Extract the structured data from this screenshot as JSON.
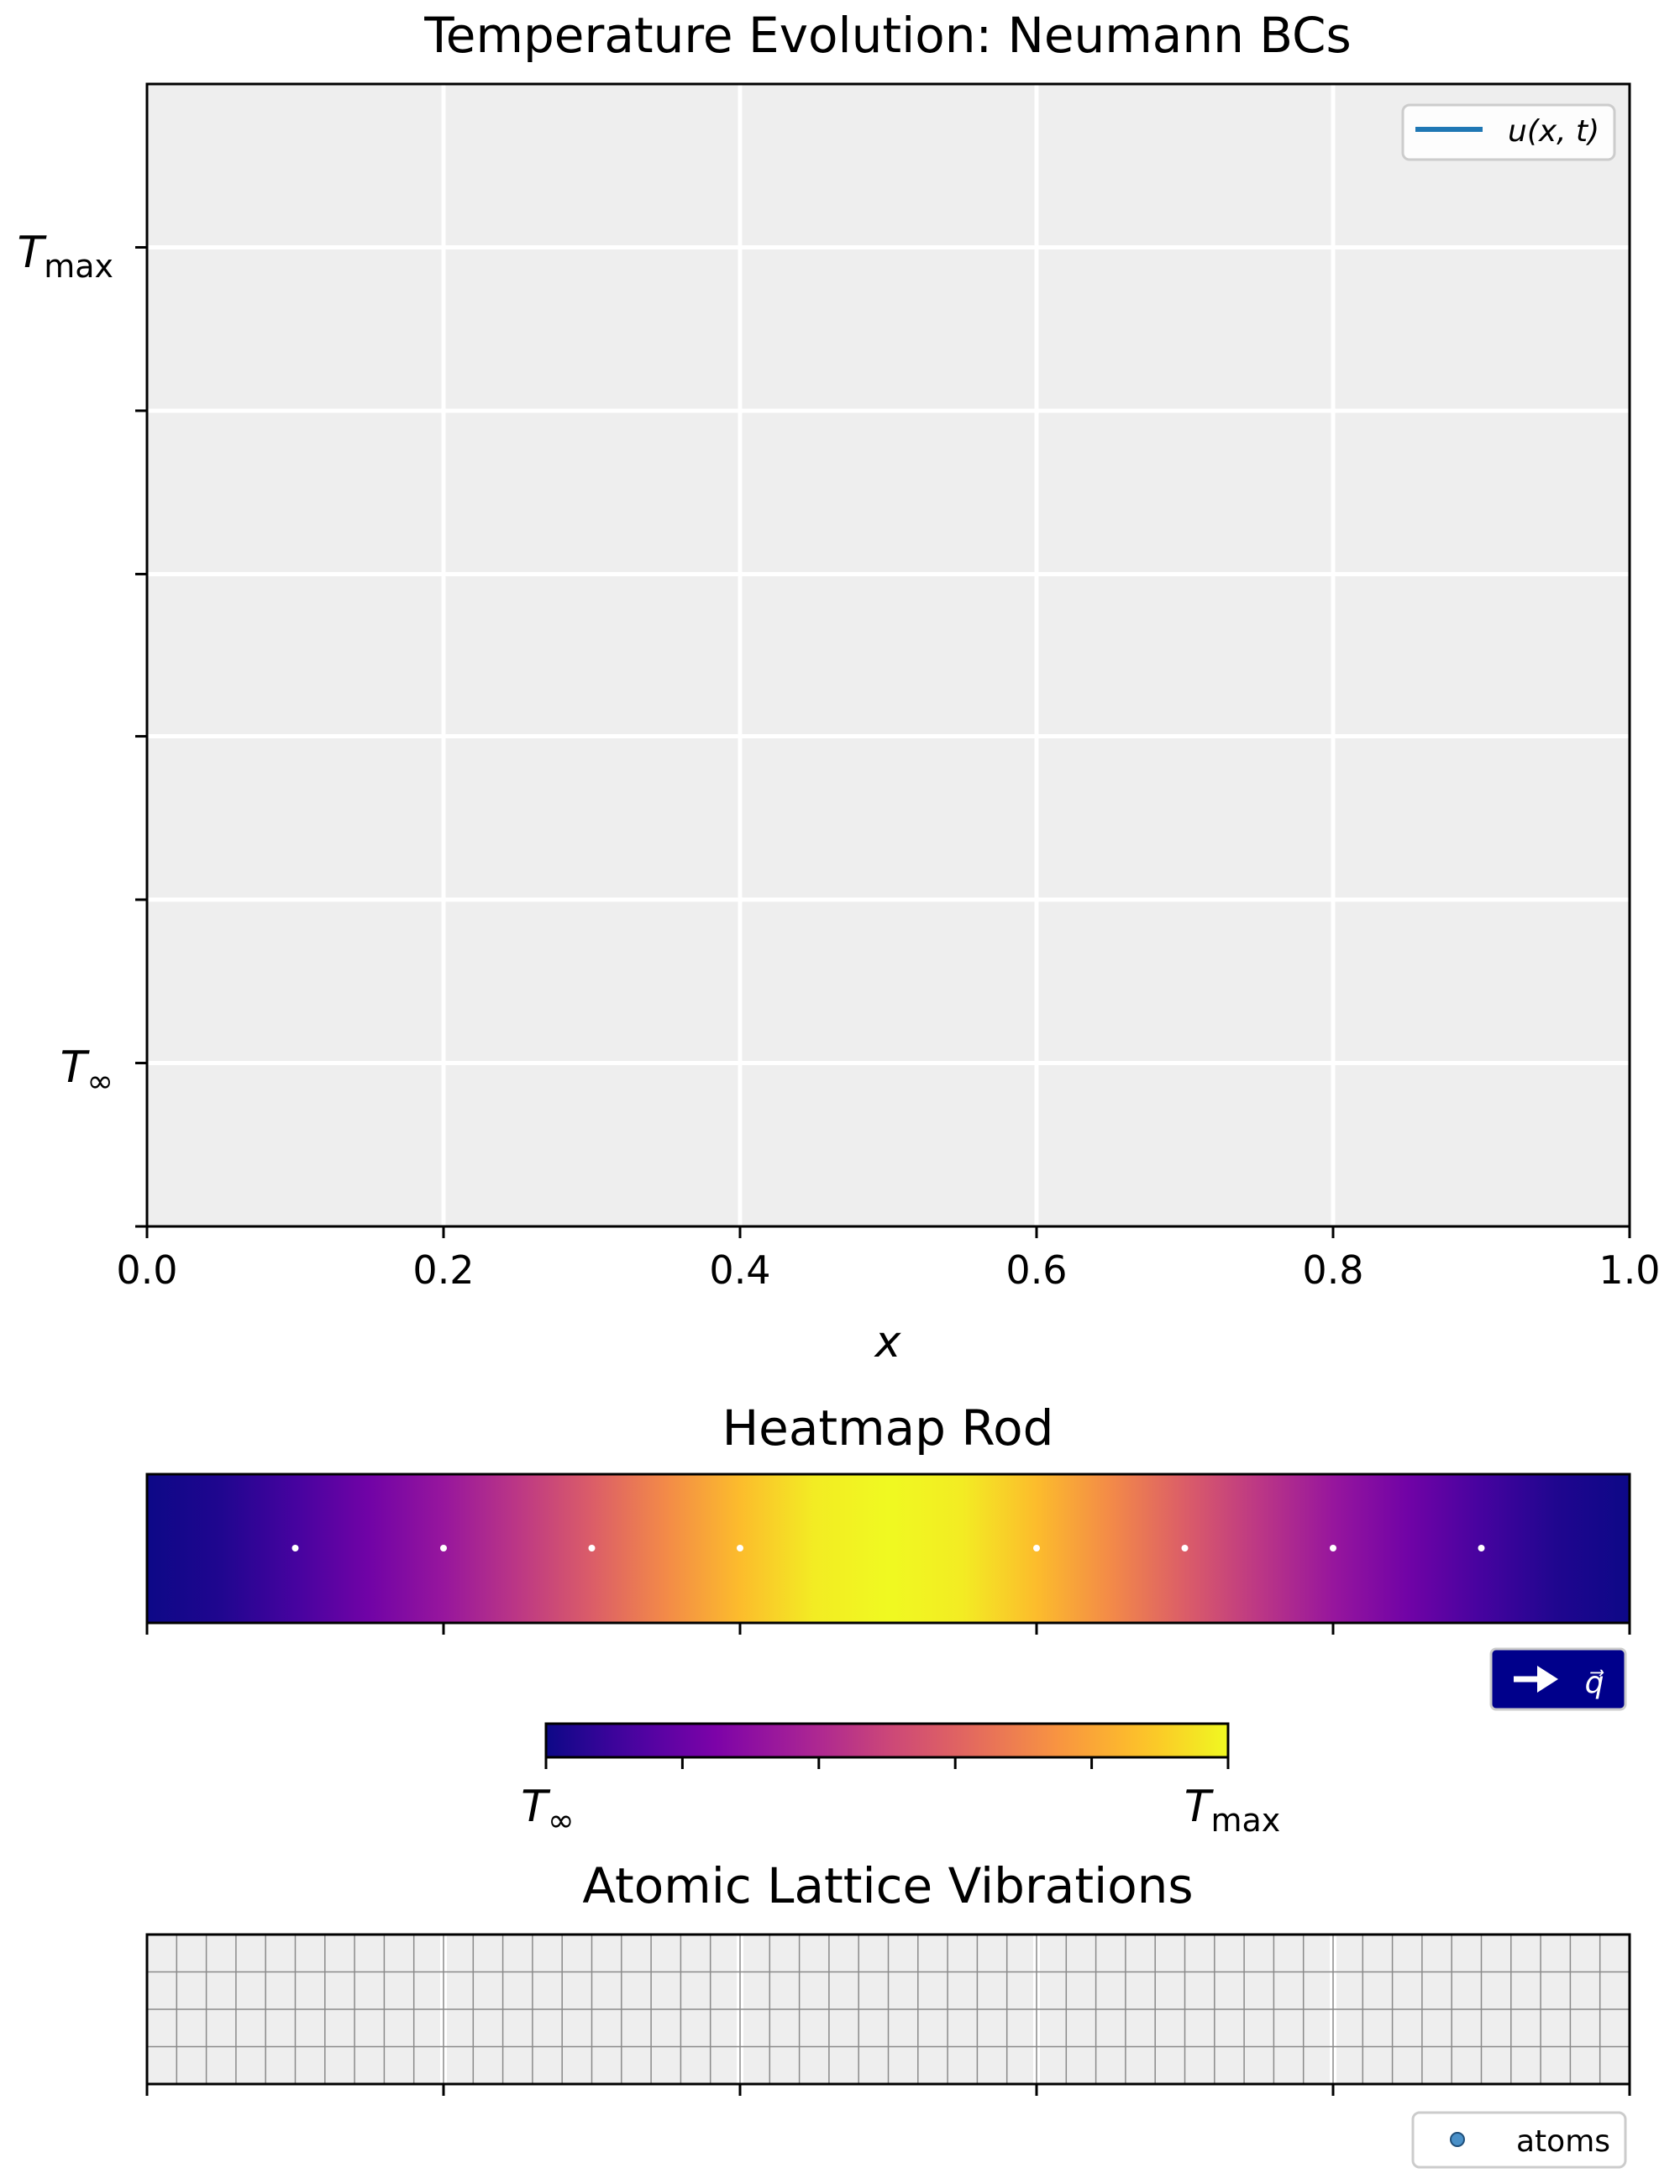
{
  "chart_data": [
    {
      "type": "line",
      "title": "Temperature Evolution: Neumann BCs",
      "xlabel": "x",
      "ylabel": "",
      "xlim": [
        0.0,
        1.0
      ],
      "xticks": [
        "0.0",
        "0.2",
        "0.4",
        "0.6",
        "0.8",
        "1.0"
      ],
      "yticks": [
        {
          "value": 0.857,
          "label": "T_max"
        },
        {
          "value": 0.714,
          "label": ""
        },
        {
          "value": 0.571,
          "label": ""
        },
        {
          "value": 0.429,
          "label": ""
        },
        {
          "value": 0.286,
          "label": ""
        },
        {
          "value": 0.143,
          "label": "T_∞"
        },
        {
          "value": 0.0,
          "label": ""
        }
      ],
      "ylim": [
        0,
        1
      ],
      "grid": true,
      "legend": "top-right",
      "series": [
        {
          "name": "u(x, t)",
          "values": [],
          "color": "#1f77b4"
        }
      ],
      "background": "#eeeeee"
    },
    {
      "type": "heatmap",
      "title": "Heatmap Rod",
      "colormap": "plasma",
      "xlim": [
        0.0,
        1.0
      ],
      "temperature_profile": [
        {
          "x": 0.0,
          "t": 0.0
        },
        {
          "x": 0.05,
          "t": 0.04
        },
        {
          "x": 0.1,
          "t": 0.12
        },
        {
          "x": 0.15,
          "t": 0.22
        },
        {
          "x": 0.2,
          "t": 0.33
        },
        {
          "x": 0.25,
          "t": 0.45
        },
        {
          "x": 0.3,
          "t": 0.58
        },
        {
          "x": 0.35,
          "t": 0.72
        },
        {
          "x": 0.4,
          "t": 0.86
        },
        {
          "x": 0.45,
          "t": 0.97
        },
        {
          "x": 0.5,
          "t": 1.0
        },
        {
          "x": 0.55,
          "t": 0.97
        },
        {
          "x": 0.6,
          "t": 0.86
        },
        {
          "x": 0.65,
          "t": 0.72
        },
        {
          "x": 0.7,
          "t": 0.58
        },
        {
          "x": 0.75,
          "t": 0.45
        },
        {
          "x": 0.8,
          "t": 0.33
        },
        {
          "x": 0.85,
          "t": 0.22
        },
        {
          "x": 0.9,
          "t": 0.12
        },
        {
          "x": 0.95,
          "t": 0.04
        },
        {
          "x": 1.0,
          "t": 0.0
        }
      ],
      "markers_x": [
        0.1,
        0.2,
        0.3,
        0.4,
        0.6,
        0.7,
        0.8,
        0.9
      ],
      "flux_legend": {
        "label": "q⃗",
        "background": "#00008b"
      }
    },
    {
      "type": "heatmap",
      "title": "",
      "role": "colorbar",
      "colormap": "plasma",
      "ticks": [
        "T_∞",
        "",
        "",
        "",
        "",
        "T_max"
      ]
    },
    {
      "type": "scatter",
      "title": "Atomic Lattice Vibrations",
      "xlim": [
        0.0,
        1.0
      ],
      "background": "#eeeeee",
      "lattice_columns": 50,
      "lattice_rows": 4,
      "series": [
        {
          "name": "atoms",
          "values": [],
          "color": "#4a90c8"
        }
      ],
      "legend": "bottom-right"
    }
  ],
  "colors": {
    "axes_bg": "#eeeeee",
    "grid": "#ffffff",
    "line": "#1f77b4",
    "flux_bg": "#00008b"
  }
}
